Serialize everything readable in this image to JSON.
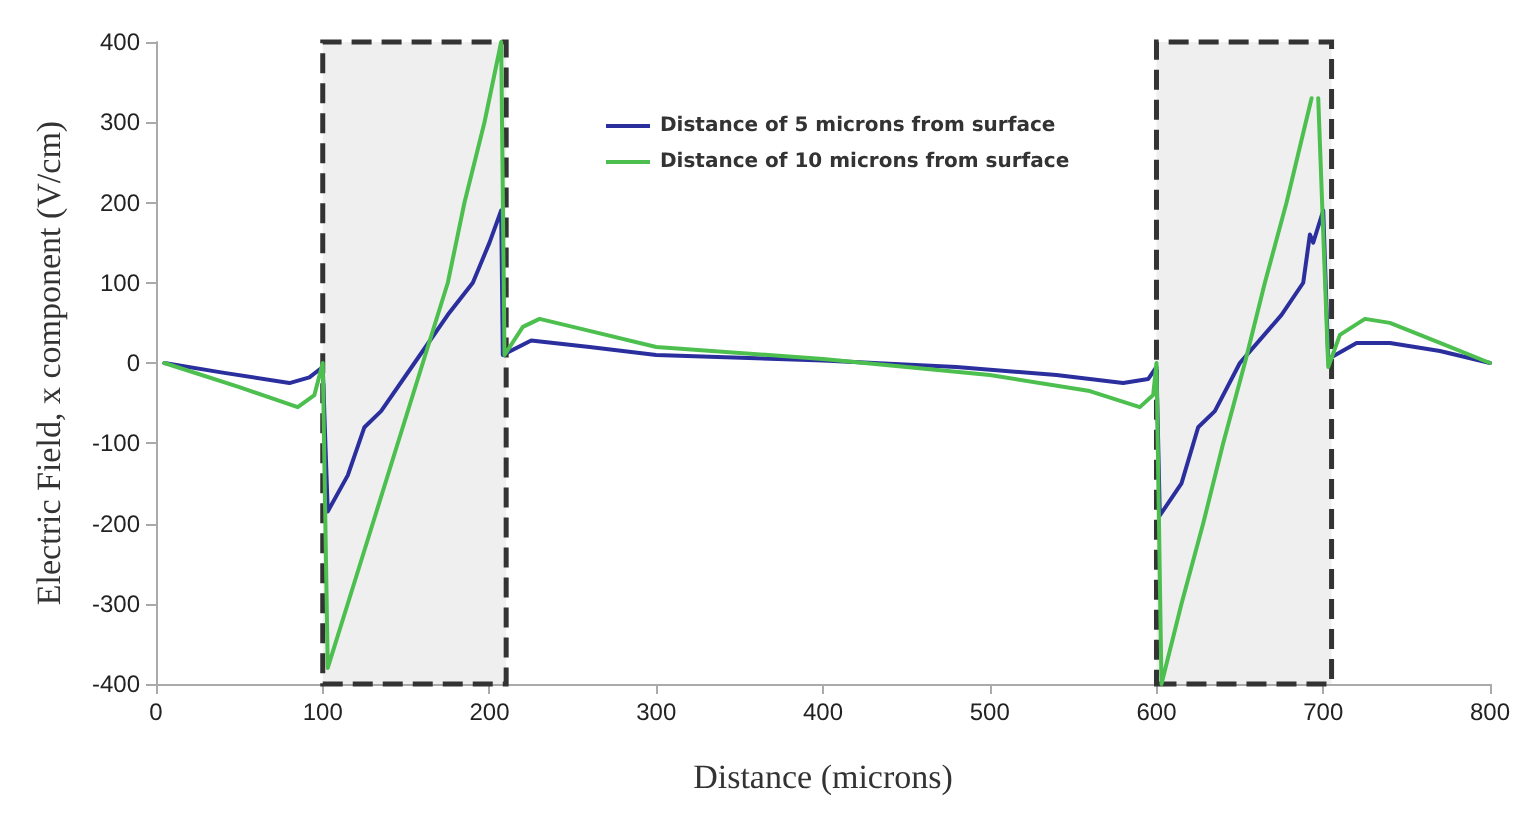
{
  "chart_data": {
    "type": "line",
    "xlabel": "Distance (microns)",
    "ylabel": "Electric Field, x component (V/cm)",
    "xlim": [
      0,
      800
    ],
    "xticks": [
      0,
      100,
      200,
      300,
      400,
      500,
      600,
      700,
      800
    ],
    "ylim": [
      -400,
      400
    ],
    "yticks": [
      -400,
      -300,
      -200,
      -100,
      0,
      100,
      200,
      300,
      400
    ],
    "grid": false,
    "legend": "top",
    "marker": "none",
    "line_style": "solid",
    "bands": [
      {
        "axis": "x",
        "from": 100,
        "to": 210,
        "color": "#333333"
      },
      {
        "axis": "x",
        "from": 600,
        "to": 705,
        "color": "#333333"
      }
    ],
    "series": [
      {
        "name": "Distance of 5 microns from surface",
        "color": "#2b2f9e",
        "x": [
          5,
          40,
          80,
          92,
          100,
          103,
          115,
          125,
          135,
          155,
          175,
          190,
          192,
          200,
          207,
          208,
          225,
          260,
          300,
          400,
          480,
          540,
          580,
          595,
          600,
          602,
          615,
          625,
          635,
          650,
          675,
          688,
          692,
          694,
          700,
          703,
          720,
          740,
          770,
          800
        ],
        "values": [
          0,
          -12,
          -25,
          -18,
          -5,
          -185,
          -140,
          -80,
          -60,
          0,
          60,
          100,
          110,
          150,
          190,
          10,
          28,
          20,
          10,
          3,
          -5,
          -15,
          -25,
          -20,
          -5,
          -190,
          -150,
          -80,
          -60,
          0,
          60,
          100,
          160,
          150,
          190,
          5,
          25,
          25,
          15,
          0
        ]
      },
      {
        "name": "Distance of 10 microns from surface",
        "color": "#4cbf4f",
        "x": [
          5,
          50,
          85,
          95,
          100,
          103,
          115,
          130,
          145,
          160,
          175,
          185,
          197,
          207,
          209,
          220,
          230,
          260,
          300,
          400,
          500,
          560,
          590,
          598,
          600,
          603,
          615,
          628,
          640,
          653,
          665,
          678,
          693,
          695,
          697,
          703,
          710,
          725,
          740,
          770,
          800
        ],
        "values": [
          0,
          -30,
          -55,
          -40,
          0,
          -380,
          -300,
          -200,
          -100,
          0,
          100,
          200,
          300,
          400,
          10,
          45,
          55,
          40,
          20,
          5,
          -15,
          -35,
          -55,
          -40,
          0,
          -400,
          -300,
          -200,
          -100,
          0,
          100,
          200,
          330,
          null,
          330,
          -5,
          35,
          55,
          50,
          25,
          0
        ]
      }
    ]
  }
}
